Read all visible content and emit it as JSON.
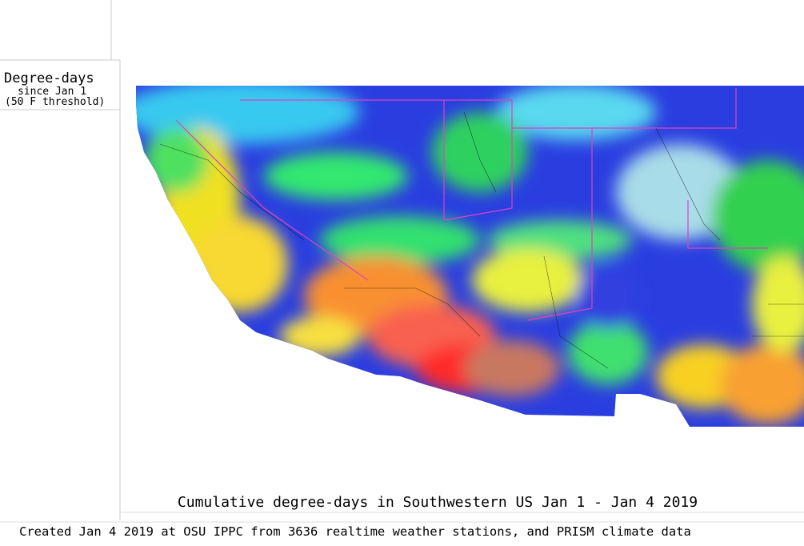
{
  "legend": {
    "title": "Degree-days",
    "subtitle": "since Jan 1",
    "threshold": "(50 F threshold)"
  },
  "caption": "Cumulative degree-days in Southwestern US Jan 1 - Jan 4 2019",
  "footer": "Created Jan 4 2019 at OSU IPPC from 3636 realtime weather stations, and PRISM climate data"
}
